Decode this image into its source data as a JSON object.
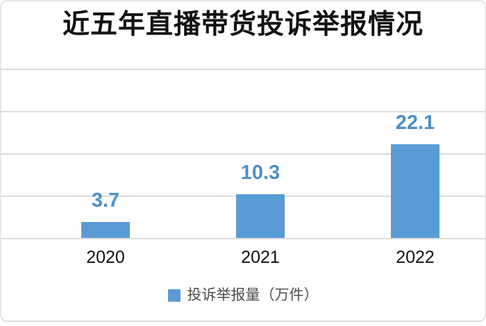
{
  "chart_data": {
    "type": "bar",
    "title": "近五年直播带货投诉举报情况",
    "categories": [
      "2020",
      "2021",
      "2022"
    ],
    "values": [
      3.7,
      10.3,
      22.1
    ],
    "data_labels": [
      "3.7",
      "10.3",
      "22.1"
    ],
    "series": [
      {
        "name": "投诉举报量（万件）",
        "values": [
          3.7,
          10.3,
          22.1
        ]
      }
    ],
    "legend": [
      "投诉举报量（万件）"
    ],
    "legend_position": "bottom",
    "xlabel": "",
    "ylabel": "",
    "ylim": [
      0,
      40
    ],
    "gridline_interval": 10,
    "grid": true,
    "y_tick_labels_visible": false,
    "colors": {
      "bar": "#5b9bd5",
      "value_label": "#4d8fca",
      "gridline": "#dcdcdc",
      "axis_label": "#111111",
      "legend_text": "#4d4d4d",
      "title": "#121212"
    }
  }
}
